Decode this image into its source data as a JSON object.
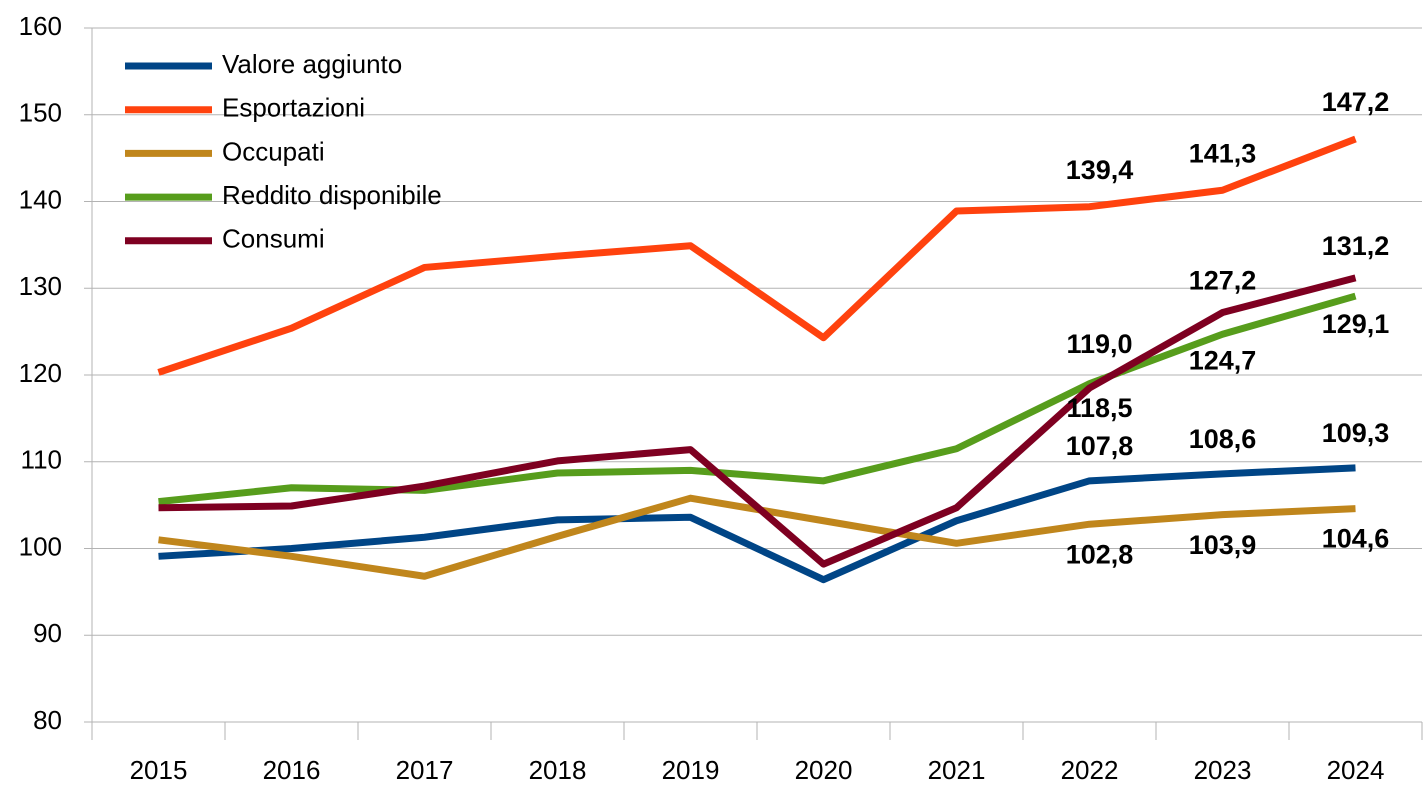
{
  "chart_data": {
    "type": "line",
    "categories": [
      "2015",
      "2016",
      "2017",
      "2018",
      "2019",
      "2020",
      "2021",
      "2022",
      "2023",
      "2024"
    ],
    "series": [
      {
        "name": "Valore aggiunto",
        "color": "#004586",
        "values": [
          99.1,
          100.0,
          101.3,
          103.3,
          103.6,
          96.4,
          103.2,
          107.8,
          108.6,
          109.3
        ],
        "value_labels": [
          null,
          null,
          null,
          null,
          null,
          null,
          null,
          "107,8",
          "108,6",
          "109,3"
        ]
      },
      {
        "name": "Esportazioni",
        "color": "#ff420e",
        "values": [
          120.3,
          125.4,
          132.4,
          133.7,
          134.9,
          124.3,
          138.9,
          139.4,
          141.3,
          147.2
        ],
        "value_labels": [
          null,
          null,
          null,
          null,
          null,
          null,
          null,
          "139,4",
          "141,3",
          "147,2"
        ]
      },
      {
        "name": "Occupati",
        "color": "#c0861c",
        "values": [
          101.0,
          99.1,
          96.8,
          101.4,
          105.8,
          103.2,
          100.6,
          102.8,
          103.9,
          104.6
        ],
        "value_labels": [
          null,
          null,
          null,
          null,
          null,
          null,
          null,
          "102,8",
          "103,9",
          "104,6"
        ]
      },
      {
        "name": "Reddito disponibile",
        "color": "#579d1c",
        "values": [
          105.4,
          107.0,
          106.7,
          108.7,
          109.0,
          107.8,
          111.5,
          119.0,
          124.7,
          129.1
        ],
        "value_labels": [
          null,
          null,
          null,
          null,
          null,
          null,
          null,
          "119,0",
          "124,7",
          "129,1"
        ]
      },
      {
        "name": "Consumi",
        "color": "#7e0021",
        "values": [
          104.7,
          104.9,
          107.2,
          110.1,
          111.4,
          98.2,
          104.7,
          118.5,
          127.2,
          131.2
        ],
        "value_labels": [
          null,
          null,
          null,
          null,
          null,
          null,
          null,
          "118,5",
          "127,2",
          "131,2"
        ]
      }
    ],
    "ylim": [
      80,
      160
    ],
    "yticks": [
      80,
      90,
      100,
      110,
      120,
      130,
      140,
      150,
      160
    ],
    "grid": true,
    "legend": "top-left"
  }
}
